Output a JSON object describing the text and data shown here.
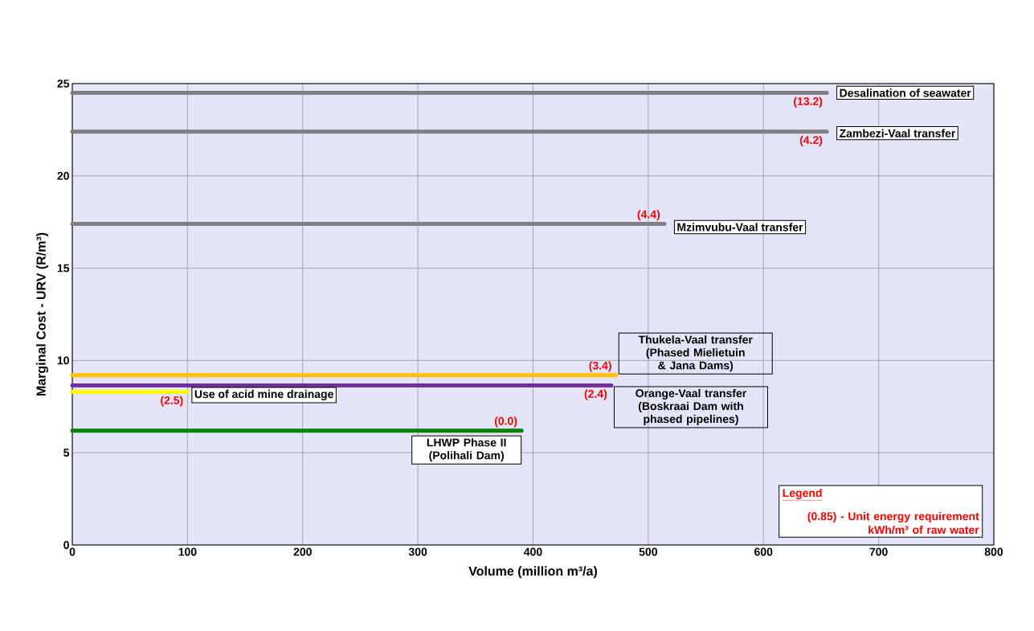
{
  "chart_data": {
    "type": "line",
    "xlabel": "Volume (million m³/a)",
    "ylabel": "Marginal Cost - URV (R/m³)",
    "xlim": [
      0,
      800
    ],
    "ylim": [
      0,
      25
    ],
    "xticks": [
      0,
      100,
      200,
      300,
      400,
      500,
      600,
      700,
      800
    ],
    "yticks": [
      0,
      5,
      10,
      15,
      20,
      25
    ],
    "grid": true,
    "series": [
      {
        "name": "Desalination of seawater",
        "color": "#808080",
        "x": [
          0,
          655
        ],
        "values": [
          24.5,
          24.5
        ]
      },
      {
        "name": "Zambezi-Vaal transfer",
        "color": "#808080",
        "x": [
          0,
          655
        ],
        "values": [
          22.4,
          22.4
        ]
      },
      {
        "name": "Mzimvubu-Vaal transfer",
        "color": "#808080",
        "x": [
          0,
          514
        ],
        "values": [
          17.4,
          17.4
        ]
      },
      {
        "name": "Thukela-Vaal transfer (Phased Mielietuin & Jana Dams)",
        "color": "#ffc000",
        "x": [
          0,
          472
        ],
        "values": [
          9.2,
          9.2
        ]
      },
      {
        "name": "Orange-Vaal transfer (Boskraai Dam with phased pipelines)",
        "color": "#7030a0",
        "x": [
          0,
          468
        ],
        "values": [
          8.65,
          8.65
        ]
      },
      {
        "name": "Use of acid mine drainage",
        "color": "#ffff00",
        "x": [
          0,
          100
        ],
        "values": [
          8.3,
          8.3
        ]
      },
      {
        "name": "LHWP Phase II (Polihali Dam)",
        "color": "#008000",
        "x": [
          0,
          390
        ],
        "values": [
          6.2,
          6.2
        ]
      }
    ],
    "annotations": [
      {
        "text": "(13.2)",
        "x": 655,
        "y": 24.5
      },
      {
        "text": "(4.2)",
        "x": 655,
        "y": 22.4
      },
      {
        "text": "(4.4)",
        "x": 514,
        "y": 17.4
      },
      {
        "text": "(3.4)",
        "x": 472,
        "y": 9.2
      },
      {
        "text": "(2.4)",
        "x": 468,
        "y": 8.65
      },
      {
        "text": "(2.5)",
        "x": 100,
        "y": 8.3
      },
      {
        "text": "(0.0)",
        "x": 390,
        "y": 6.2
      },
      "Legend",
      "(0.85) - Unit energy requirement kWh/m³ of raw water"
    ]
  }
}
